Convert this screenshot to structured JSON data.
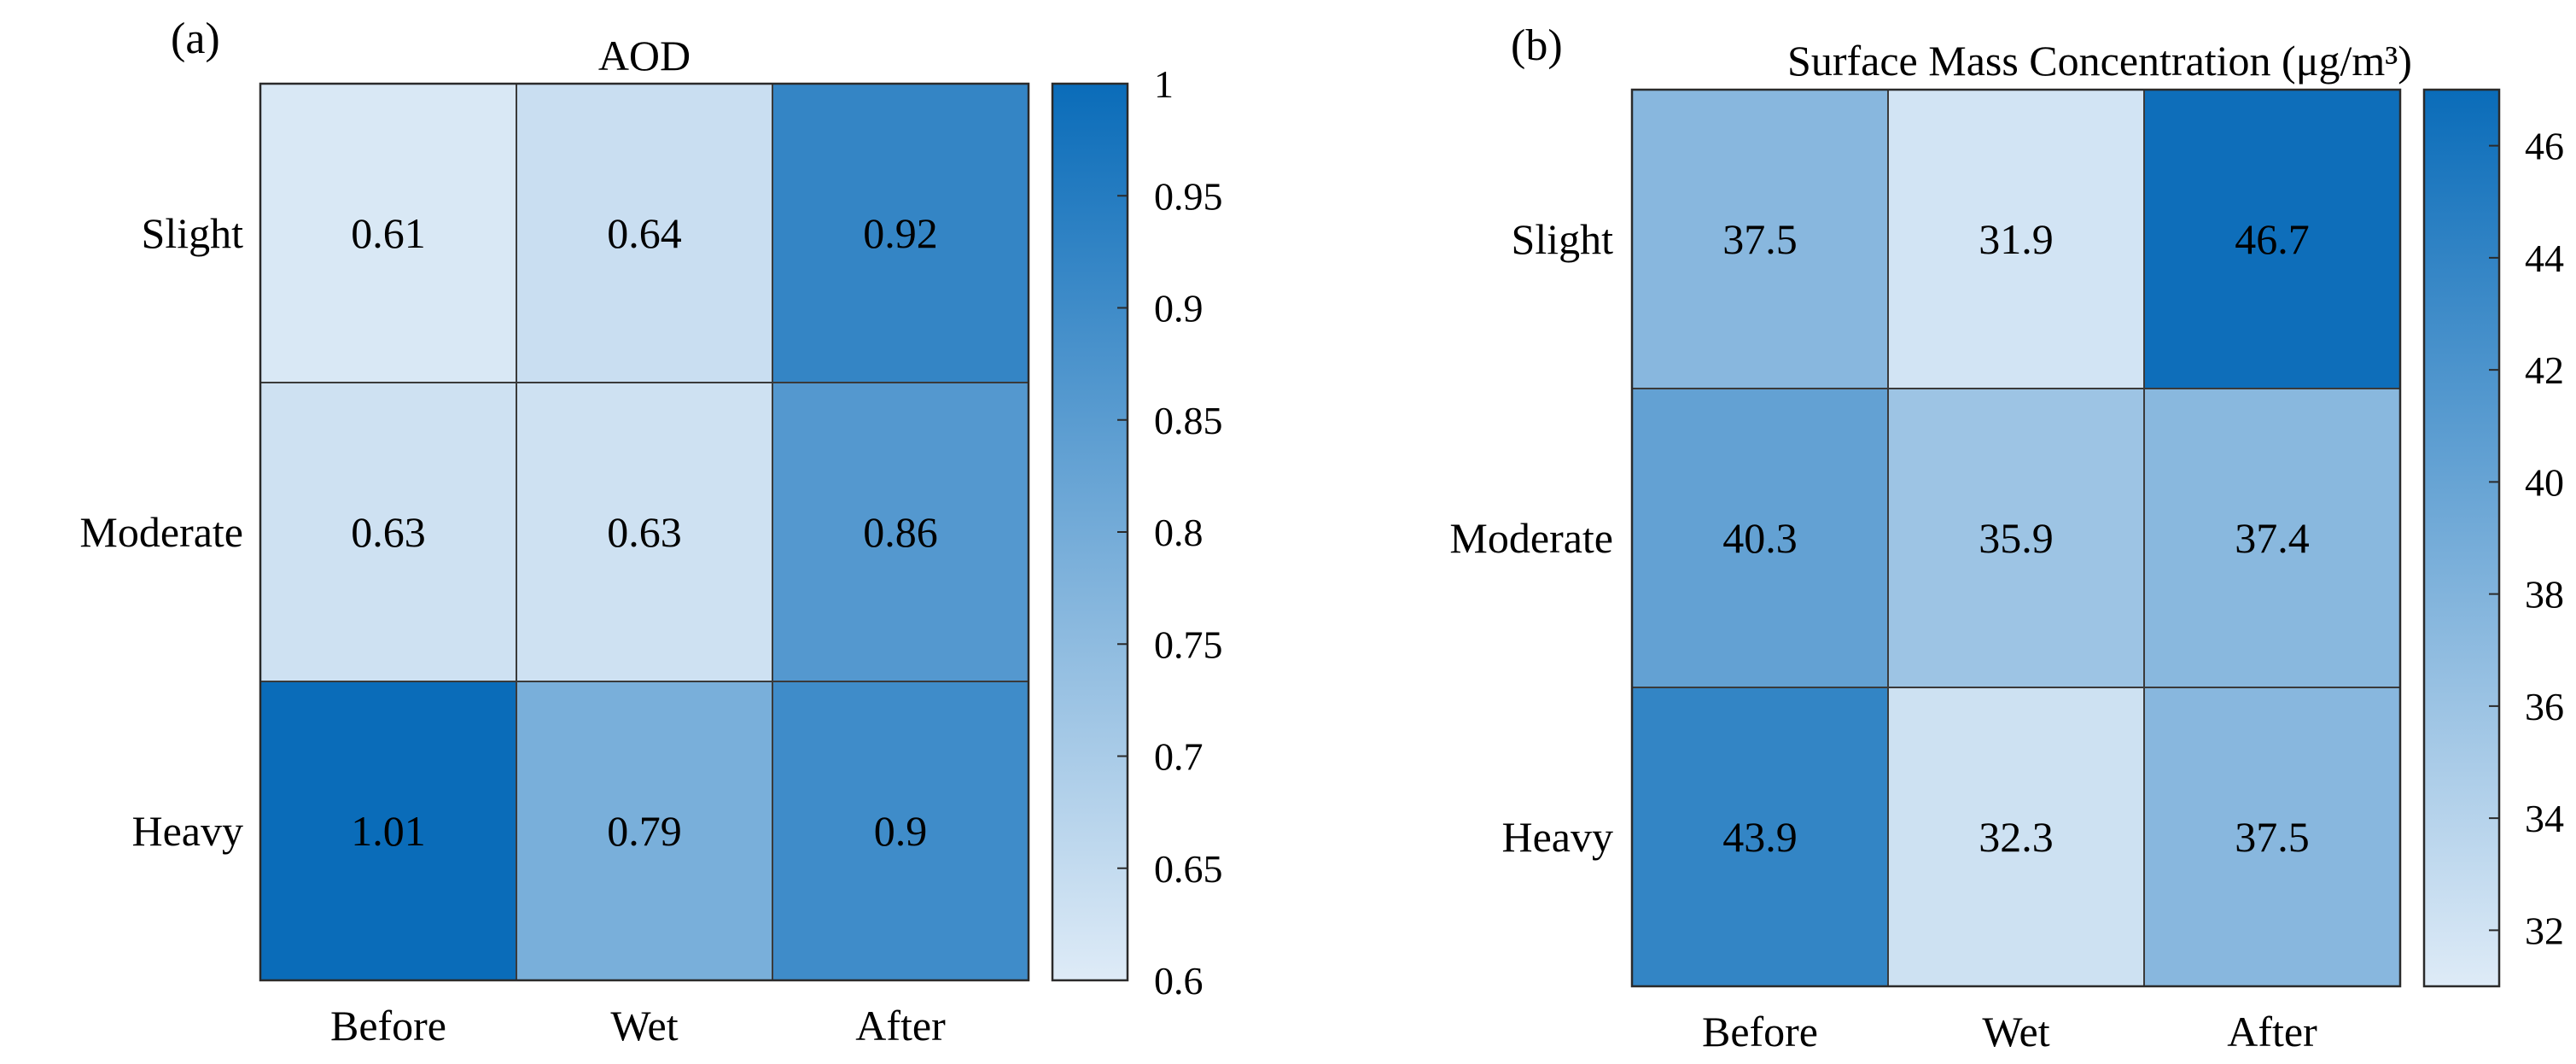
{
  "figure": {
    "panels": [
      {
        "tag": "(a)"
      },
      {
        "tag": "(b)"
      }
    ]
  },
  "chart_data": [
    {
      "type": "heatmap",
      "title": "AOD",
      "x_categories": [
        "Before",
        "Wet",
        "After"
      ],
      "y_categories": [
        "Slight",
        "Moderate",
        "Heavy"
      ],
      "values": [
        [
          0.61,
          0.64,
          0.92
        ],
        [
          0.63,
          0.63,
          0.86
        ],
        [
          1.01,
          0.79,
          0.9
        ]
      ],
      "cell_labels": [
        [
          "0.61",
          "0.64",
          "0.92"
        ],
        [
          "0.63",
          "0.63",
          "0.86"
        ],
        [
          "1.01",
          "0.79",
          "0.9"
        ]
      ],
      "colorbar": {
        "range": [
          0.6,
          1.0
        ],
        "ticks": [
          0.6,
          0.65,
          0.7,
          0.75,
          0.8,
          0.85,
          0.9,
          0.95,
          1.0
        ],
        "tick_labels": [
          "0.6",
          "0.65",
          "0.7",
          "0.75",
          "0.8",
          "0.85",
          "0.9",
          "0.95",
          "1"
        ]
      },
      "colormap": {
        "low": "#deebf7",
        "high": "#0a6cb9"
      },
      "light_text_color": "#ffffff",
      "dark_text_color": "#000000"
    },
    {
      "type": "heatmap",
      "title": "Surface Mass Concentration (μg/m³)",
      "x_categories": [
        "Before",
        "Wet",
        "After"
      ],
      "y_categories": [
        "Slight",
        "Moderate",
        "Heavy"
      ],
      "values": [
        [
          37.5,
          31.9,
          46.7
        ],
        [
          40.3,
          35.9,
          37.4
        ],
        [
          43.9,
          32.3,
          37.5
        ]
      ],
      "cell_labels": [
        [
          "37.5",
          "31.9",
          "46.7"
        ],
        [
          "40.3",
          "35.9",
          "37.4"
        ],
        [
          "43.9",
          "32.3",
          "37.5"
        ]
      ],
      "colorbar": {
        "range": [
          31,
          47
        ],
        "ticks": [
          32,
          34,
          36,
          38,
          40,
          42,
          44,
          46
        ],
        "tick_labels": [
          "32",
          "34",
          "36",
          "38",
          "40",
          "42",
          "44",
          "46"
        ]
      },
      "colormap": {
        "low": "#deebf7",
        "high": "#0a6cb9"
      },
      "light_text_color": "#ffffff",
      "dark_text_color": "#000000"
    }
  ]
}
